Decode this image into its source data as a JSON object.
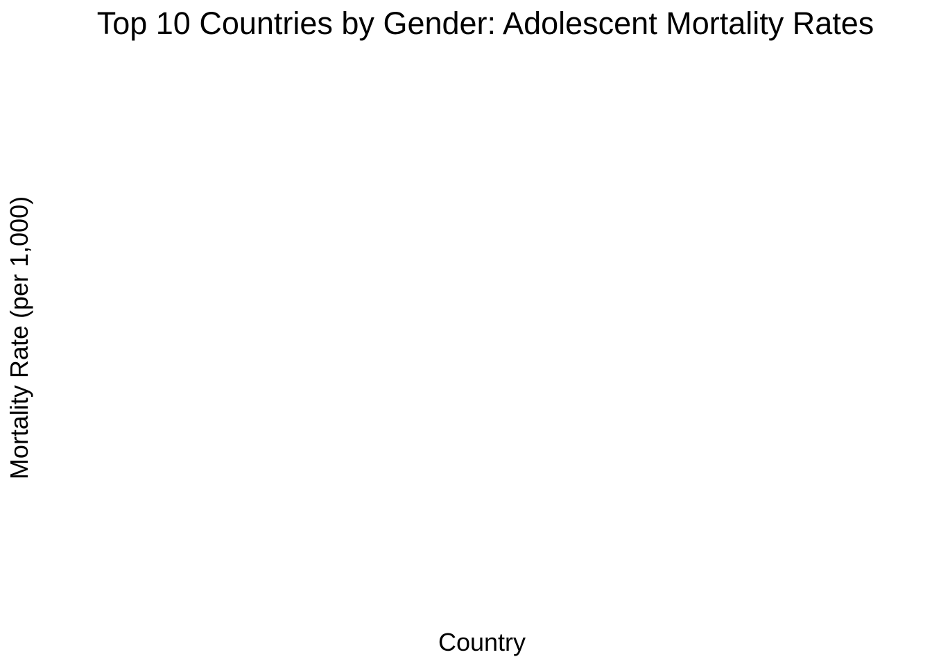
{
  "chart_data": {
    "type": "bar",
    "title": "Top 10 Countries by Gender: Adolescent Mortality Rates",
    "xlabel": "Country",
    "ylabel": "Mortality Rate (per 1,000)",
    "categories": [],
    "series": [],
    "grid": false,
    "legend": "none"
  }
}
